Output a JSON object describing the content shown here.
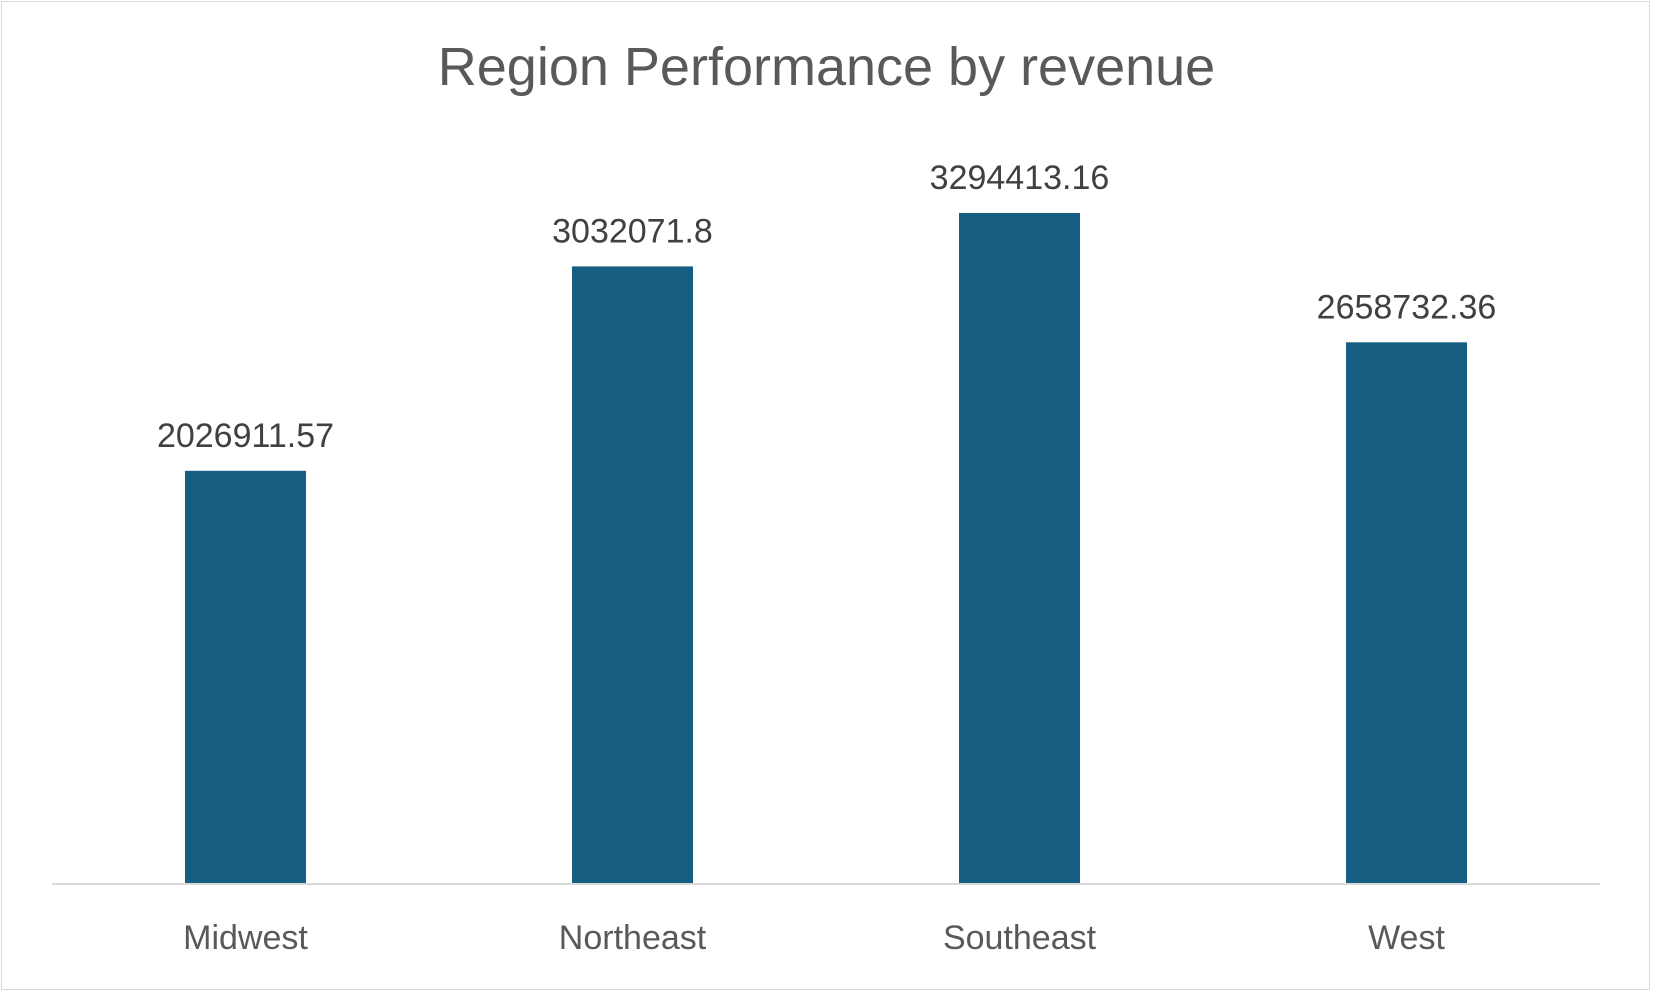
{
  "chart_data": {
    "type": "bar",
    "title": "Region Performance by revenue",
    "xlabel": "",
    "ylabel": "",
    "categories": [
      "Midwest",
      "Northeast",
      "Southeast",
      "West"
    ],
    "values": [
      2026911.57,
      3032071.8,
      3294413.16,
      2658732.36
    ],
    "data_labels": [
      "2026911.57",
      "3032071.8",
      "3294413.16",
      "2658732.36"
    ],
    "ylim": [
      0,
      4000000
    ],
    "grid": false,
    "legend": "none",
    "bar_color": "#175f82",
    "axis_color": "#d9d9d9"
  }
}
